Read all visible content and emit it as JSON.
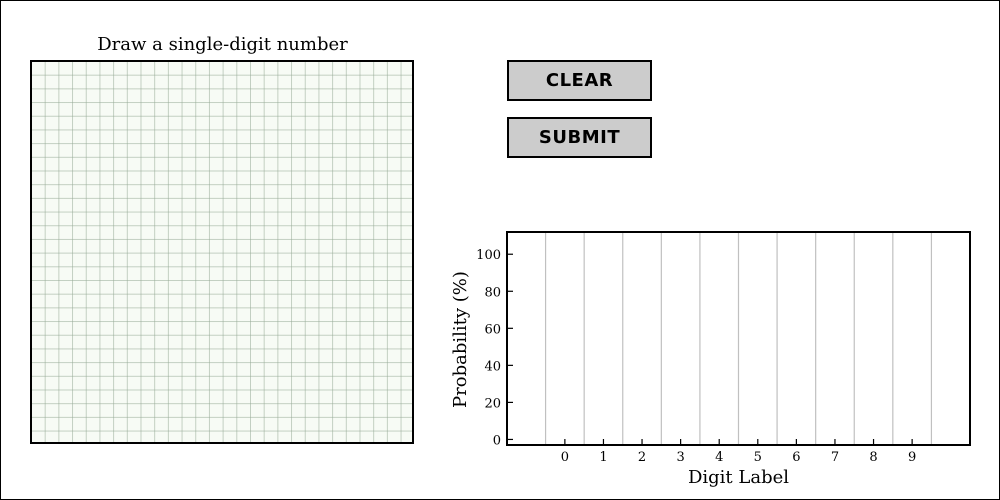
{
  "canvas": {
    "title": "Draw a single-digit number"
  },
  "buttons": {
    "clear_label": "CLEAR",
    "submit_label": "SUBMIT"
  },
  "colors": {
    "button_bg": "#cccccc",
    "canvas_bg": "#f7fbf5",
    "grid": "#a0b4a0"
  },
  "chart_data": {
    "type": "bar",
    "categories": [
      "0",
      "1",
      "2",
      "3",
      "4",
      "5",
      "6",
      "7",
      "8",
      "9"
    ],
    "values": [
      0,
      0,
      0,
      0,
      0,
      0,
      0,
      0,
      0,
      0
    ],
    "xlabel": "Digit Label",
    "ylabel": "Probability (%)",
    "ylim": [
      -3,
      112
    ],
    "yticks": [
      0,
      20,
      40,
      60,
      80,
      100
    ],
    "xlim": [
      -1.5,
      10.5
    ],
    "grid": "vertical"
  }
}
